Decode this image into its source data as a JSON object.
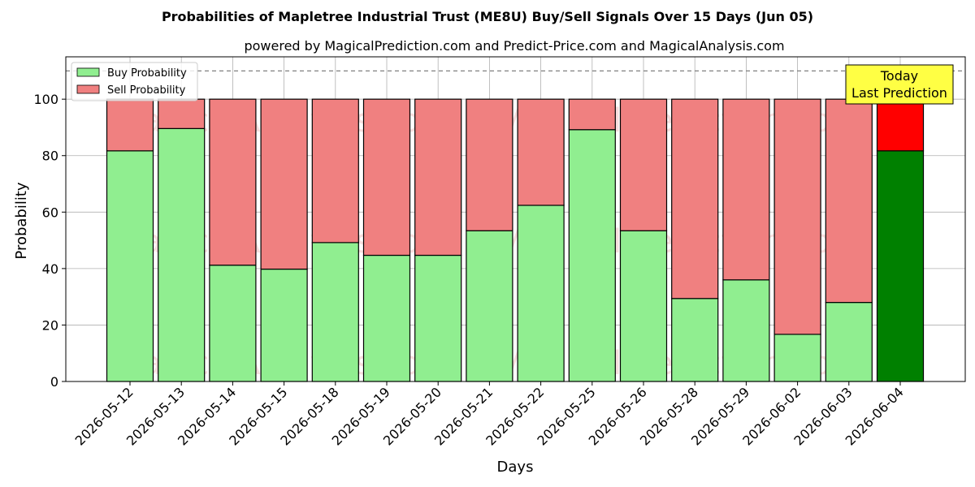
{
  "chart_data": {
    "type": "bar",
    "stacked": true,
    "title": "Probabilities of Mapletree Industrial Trust (ME8U) Buy/Sell Signals Over 15 Days (Jun 05)",
    "subtitle": "powered by MagicalPrediction.com and Predict-Price.com and MagicalAnalysis.com",
    "xlabel": "Days",
    "ylabel": "Probability",
    "ylim": [
      0,
      115
    ],
    "yticks": [
      0,
      20,
      40,
      60,
      80,
      100
    ],
    "grid": true,
    "legend_position": "top-left",
    "reference_line": 110,
    "categories": [
      "2026-05-12",
      "2026-05-13",
      "2026-05-14",
      "2026-05-15",
      "2026-05-18",
      "2026-05-19",
      "2026-05-20",
      "2026-05-21",
      "2026-05-22",
      "2026-05-25",
      "2026-05-26",
      "2026-05-28",
      "2026-05-29",
      "2026-06-02",
      "2026-06-03",
      "2026-06-04"
    ],
    "series": [
      {
        "name": "Buy Probability",
        "color": "#90ee90",
        "values": [
          81.7,
          89.6,
          41.2,
          39.8,
          49.2,
          44.7,
          44.7,
          53.4,
          62.4,
          89.2,
          53.4,
          29.4,
          36.0,
          16.7,
          28.0,
          81.7
        ]
      },
      {
        "name": "Sell Probability",
        "color": "#f08080",
        "values": [
          18.3,
          10.4,
          58.8,
          60.2,
          50.8,
          55.3,
          55.3,
          46.6,
          37.6,
          10.8,
          46.6,
          70.6,
          64.0,
          83.3,
          72.0,
          18.3
        ]
      }
    ],
    "highlight": {
      "index": 15,
      "buy_color": "#008000",
      "sell_color": "#ff0000"
    },
    "annotation": {
      "lines": [
        "Today",
        "Last Prediction"
      ],
      "background": "#ffff44"
    },
    "watermarks": [
      "MagicalAnalysis.com",
      "MagicalPrediction.com"
    ]
  }
}
